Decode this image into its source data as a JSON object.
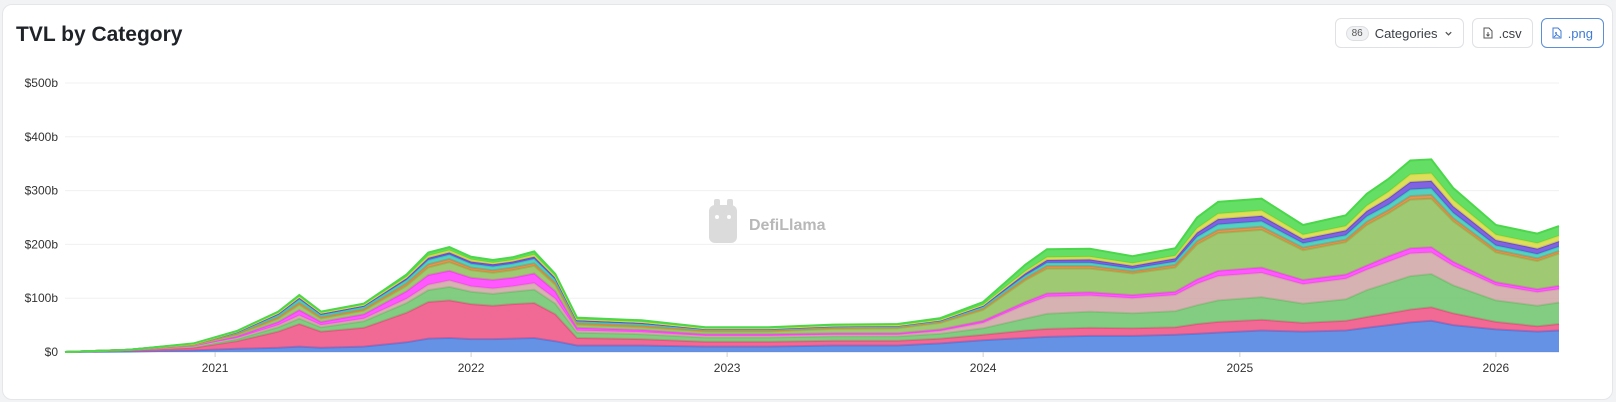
{
  "header": {
    "title": "TVL by Category",
    "categories_count": "86",
    "categories_label": "Categories",
    "csv_label": ".csv",
    "png_label": ".png"
  },
  "watermark": "DefiLlama",
  "chart_data": {
    "type": "area",
    "stacked": true,
    "title": "TVL by Category",
    "xlabel": "",
    "ylabel": "",
    "x_ticks": [
      "2021",
      "2022",
      "2023",
      "2024",
      "2025",
      "2026"
    ],
    "y_ticks": [
      "$0",
      "$100b",
      "$200b",
      "$300b",
      "$400b",
      "$500b"
    ],
    "ylim": [
      0,
      500
    ],
    "y_unit": "billion USD",
    "grid": true,
    "legend": "none",
    "x": [
      "2020-06",
      "2020-09",
      "2020-12",
      "2021-02",
      "2021-04",
      "2021-05",
      "2021-06",
      "2021-08",
      "2021-10",
      "2021-11",
      "2021-12",
      "2022-01",
      "2022-02",
      "2022-03",
      "2022-04",
      "2022-05",
      "2022-06",
      "2022-09",
      "2022-12",
      "2023-03",
      "2023-06",
      "2023-09",
      "2023-11",
      "2024-01",
      "2024-03",
      "2024-04",
      "2024-06",
      "2024-08",
      "2024-10",
      "2024-11",
      "2024-12",
      "2025-02",
      "2025-04",
      "2025-06",
      "2025-07",
      "2025-08",
      "2025-09",
      "2025-10",
      "2025-11",
      "2026-01",
      "2026-03",
      "2026-04"
    ],
    "series": [
      {
        "color": "#4a7fe0",
        "values": [
          0,
          1,
          3,
          6,
          8,
          10,
          8,
          10,
          18,
          25,
          26,
          24,
          24,
          25,
          26,
          20,
          12,
          12,
          10,
          10,
          12,
          12,
          16,
          22,
          26,
          28,
          30,
          30,
          32,
          34,
          36,
          40,
          38,
          40,
          45,
          50,
          55,
          58,
          50,
          42,
          38,
          40
        ]
      },
      {
        "color": "#ef4f83",
        "values": [
          0,
          2,
          5,
          14,
          30,
          42,
          30,
          35,
          55,
          68,
          70,
          65,
          62,
          64,
          65,
          50,
          14,
          12,
          9,
          9,
          9,
          9,
          9,
          10,
          14,
          15,
          15,
          14,
          14,
          18,
          20,
          20,
          16,
          18,
          20,
          22,
          24,
          25,
          22,
          14,
          10,
          12
        ]
      },
      {
        "color": "#6cc46c",
        "values": [
          0,
          1,
          2,
          4,
          8,
          10,
          8,
          12,
          18,
          22,
          25,
          23,
          22,
          23,
          25,
          20,
          10,
          9,
          8,
          8,
          8,
          8,
          9,
          12,
          22,
          28,
          30,
          28,
          30,
          35,
          40,
          42,
          36,
          40,
          50,
          56,
          62,
          62,
          52,
          40,
          38,
          40
        ]
      },
      {
        "color": "#cfa5a5",
        "values": [
          0,
          0,
          1,
          2,
          4,
          6,
          4,
          5,
          8,
          10,
          12,
          10,
          10,
          10,
          12,
          9,
          4,
          4,
          3,
          3,
          3,
          3,
          5,
          10,
          26,
          32,
          30,
          28,
          30,
          40,
          45,
          45,
          36,
          38,
          38,
          40,
          42,
          40,
          36,
          28,
          25,
          25
        ]
      },
      {
        "color": "#ff3bff",
        "values": [
          0,
          0,
          1,
          3,
          6,
          10,
          6,
          8,
          14,
          18,
          18,
          16,
          16,
          16,
          18,
          14,
          5,
          4,
          3,
          3,
          3,
          3,
          3,
          4,
          5,
          6,
          6,
          6,
          6,
          8,
          10,
          10,
          8,
          8,
          8,
          10,
          10,
          10,
          8,
          6,
          6,
          6
        ]
      },
      {
        "color": "#8fbf5a",
        "values": [
          0,
          0,
          1,
          3,
          6,
          10,
          6,
          7,
          10,
          14,
          16,
          14,
          13,
          14,
          14,
          12,
          6,
          5,
          5,
          5,
          8,
          9,
          12,
          20,
          40,
          46,
          44,
          40,
          45,
          65,
          70,
          70,
          55,
          60,
          75,
          80,
          90,
          90,
          75,
          55,
          52,
          60
        ]
      },
      {
        "color": "#d8863e",
        "values": [
          0,
          0,
          1,
          2,
          3,
          4,
          3,
          3,
          5,
          6,
          6,
          5,
          5,
          5,
          5,
          4,
          3,
          3,
          2,
          2,
          2,
          2,
          2,
          3,
          4,
          5,
          5,
          4,
          5,
          6,
          6,
          6,
          5,
          5,
          6,
          6,
          7,
          7,
          6,
          5,
          5,
          5
        ]
      },
      {
        "color": "#38c9b6",
        "values": [
          0,
          0,
          1,
          2,
          4,
          6,
          4,
          4,
          6,
          8,
          8,
          7,
          7,
          7,
          8,
          6,
          3,
          3,
          2,
          2,
          2,
          2,
          2,
          3,
          5,
          6,
          6,
          5,
          6,
          8,
          10,
          10,
          8,
          8,
          10,
          10,
          12,
          12,
          10,
          8,
          8,
          8
        ]
      },
      {
        "color": "#6a48d8",
        "values": [
          0,
          0,
          0,
          1,
          2,
          3,
          2,
          2,
          3,
          4,
          4,
          4,
          4,
          4,
          4,
          3,
          2,
          2,
          1,
          1,
          1,
          1,
          1,
          2,
          4,
          5,
          6,
          5,
          6,
          8,
          10,
          10,
          8,
          9,
          10,
          12,
          14,
          14,
          12,
          10,
          10,
          10
        ]
      },
      {
        "color": "#d8d840",
        "values": [
          0,
          0,
          0,
          1,
          2,
          2,
          2,
          2,
          3,
          4,
          4,
          4,
          3,
          3,
          4,
          3,
          2,
          2,
          1,
          1,
          1,
          1,
          1,
          2,
          4,
          5,
          5,
          5,
          5,
          8,
          10,
          10,
          8,
          8,
          10,
          12,
          14,
          14,
          12,
          10,
          10,
          10
        ]
      },
      {
        "color": "#4ad84a",
        "values": [
          0,
          0,
          1,
          1,
          2,
          3,
          2,
          2,
          4,
          6,
          6,
          5,
          5,
          5,
          6,
          4,
          3,
          3,
          2,
          2,
          2,
          2,
          3,
          5,
          12,
          15,
          15,
          13,
          14,
          20,
          22,
          22,
          18,
          20,
          22,
          24,
          26,
          26,
          22,
          18,
          18,
          18
        ]
      }
    ]
  }
}
